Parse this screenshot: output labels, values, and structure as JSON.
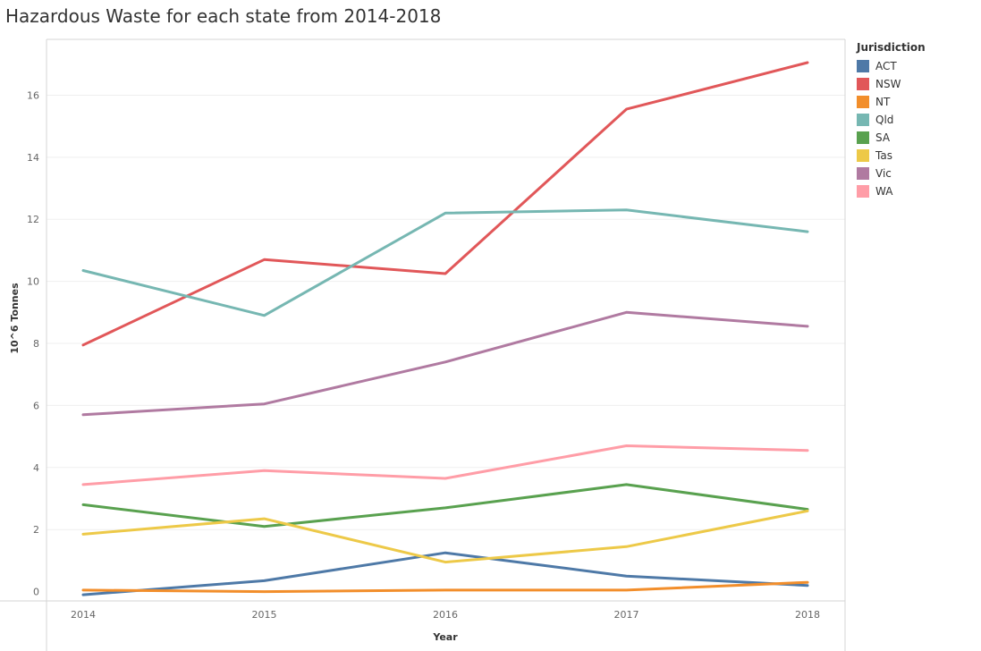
{
  "title": "Hazardous Waste for each state from 2014-2018",
  "legend": {
    "title": "Jurisdiction"
  },
  "chart_data": {
    "type": "line",
    "title": "Hazardous Waste for each state from 2014-2018",
    "xlabel": "Year",
    "ylabel": "10^6 Tonnes",
    "x": [
      "2014",
      "2015",
      "2016",
      "2017",
      "2018"
    ],
    "y_ticks": [
      "0",
      "2",
      "4",
      "6",
      "8",
      "10",
      "12",
      "14",
      "16"
    ],
    "ylim": [
      -0.3,
      17.8
    ],
    "grid": true,
    "legend_position": "right",
    "series": [
      {
        "name": "ACT",
        "color": "#4e79a7",
        "values": [
          -0.1,
          0.35,
          1.25,
          0.5,
          0.2
        ]
      },
      {
        "name": "NSW",
        "color": "#e15759",
        "values": [
          7.95,
          10.7,
          10.25,
          15.55,
          17.05
        ]
      },
      {
        "name": "NT",
        "color": "#f28e2b",
        "values": [
          0.05,
          0.0,
          0.05,
          0.05,
          0.3
        ]
      },
      {
        "name": "Qld",
        "color": "#76b7b2",
        "values": [
          10.35,
          8.9,
          12.2,
          12.3,
          11.6
        ]
      },
      {
        "name": "SA",
        "color": "#59a14f",
        "values": [
          2.8,
          2.1,
          2.7,
          3.45,
          2.65
        ]
      },
      {
        "name": "Tas",
        "color": "#edc948",
        "values": [
          1.85,
          2.35,
          0.95,
          1.45,
          2.6
        ]
      },
      {
        "name": "Vic",
        "color": "#b07aa1",
        "values": [
          5.7,
          6.05,
          7.4,
          9.0,
          8.55
        ]
      },
      {
        "name": "WA",
        "color": "#ff9da7",
        "values": [
          3.45,
          3.9,
          3.65,
          4.7,
          4.55
        ]
      }
    ]
  }
}
